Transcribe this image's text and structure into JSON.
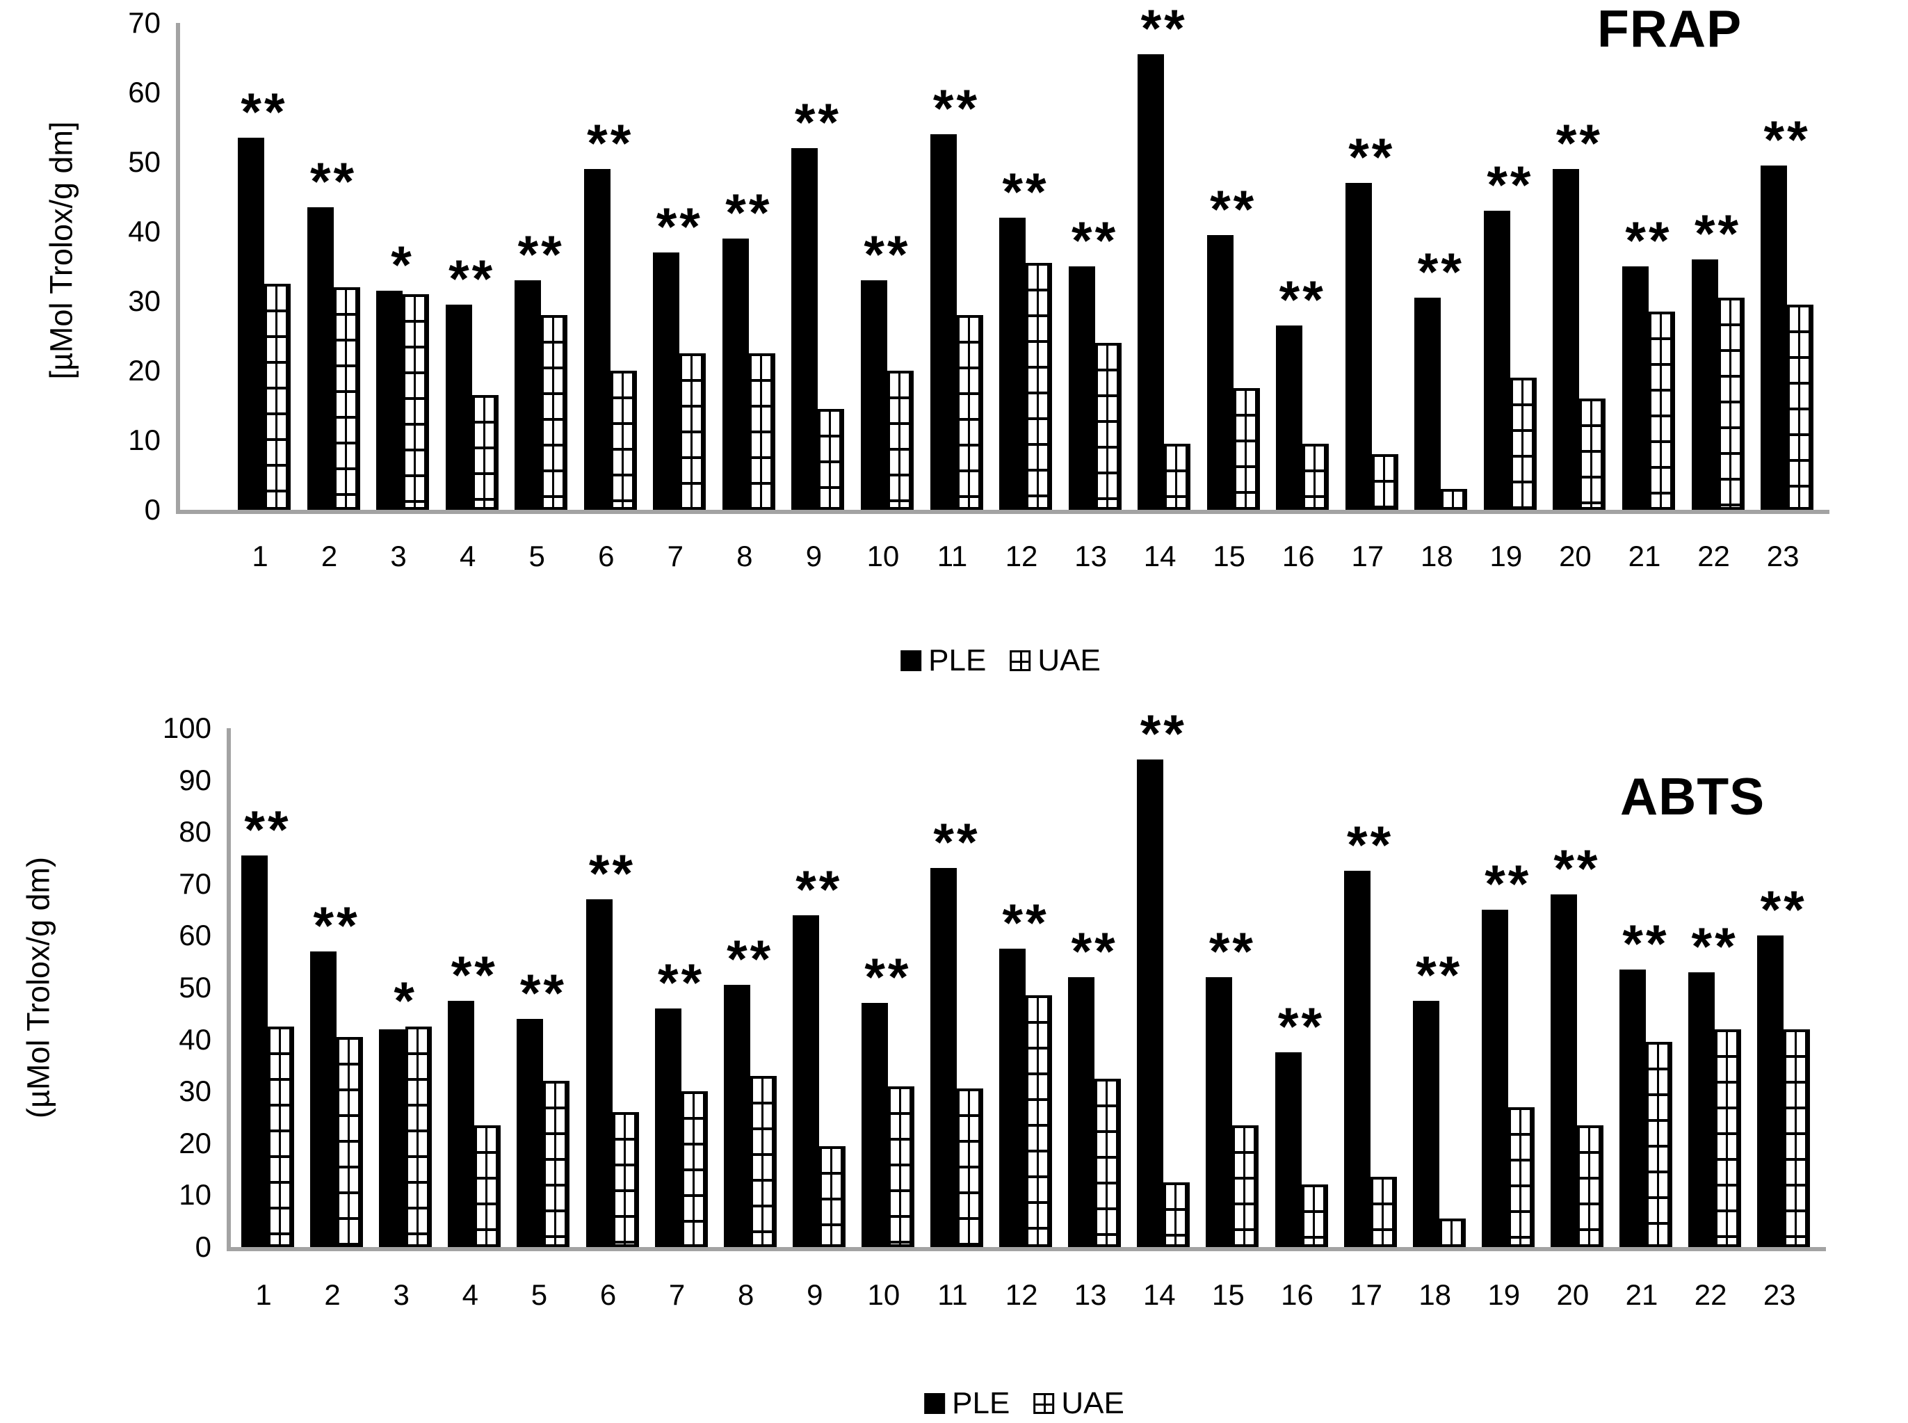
{
  "figure": {
    "panels": [
      "FRAP",
      "ABTS"
    ]
  },
  "chart_data": [
    {
      "type": "bar",
      "title": "FRAP",
      "xlabel": "",
      "ylabel": "[µMol Trolox/g dm]",
      "ylim": [
        0,
        70
      ],
      "yticks": [
        0,
        10,
        20,
        30,
        40,
        50,
        60,
        70
      ],
      "grid": false,
      "legend_position": "bottom-center",
      "categories": [
        "1",
        "2",
        "3",
        "4",
        "5",
        "6",
        "7",
        "8",
        "9",
        "10",
        "11",
        "12",
        "13",
        "14",
        "15",
        "16",
        "17",
        "18",
        "19",
        "20",
        "21",
        "22",
        "23"
      ],
      "series": [
        {
          "name": "PLE",
          "style": "solid-black",
          "values": [
            53.5,
            43.5,
            31.5,
            29.5,
            33,
            49,
            37,
            39,
            52,
            33,
            54,
            42,
            35,
            65.5,
            39.5,
            26.5,
            47,
            30.5,
            43,
            49,
            35,
            36,
            49.5
          ]
        },
        {
          "name": "UAE",
          "style": "hatched-grid",
          "values": [
            32.5,
            32,
            31,
            16.5,
            28,
            20,
            22.5,
            22.5,
            14.5,
            20,
            28,
            35.5,
            24,
            9.5,
            17.5,
            9.5,
            8,
            3,
            19,
            16,
            28.5,
            30.5,
            29.5
          ]
        }
      ],
      "significance": [
        "**",
        "**",
        "*",
        "**",
        "**",
        "**",
        "**",
        "**",
        "**",
        "**",
        "**",
        "**",
        "**",
        "**",
        "**",
        "**",
        "**",
        "**",
        "**",
        "**",
        "**",
        "**",
        "**"
      ]
    },
    {
      "type": "bar",
      "title": "ABTS",
      "xlabel": "",
      "ylabel": "(µMol Trolox/g dm)",
      "ylim": [
        0,
        100
      ],
      "yticks": [
        0,
        10,
        20,
        30,
        40,
        50,
        60,
        70,
        80,
        90,
        100
      ],
      "grid": false,
      "legend_position": "bottom-center",
      "categories": [
        "1",
        "2",
        "3",
        "4",
        "5",
        "6",
        "7",
        "8",
        "9",
        "10",
        "11",
        "12",
        "13",
        "14",
        "15",
        "16",
        "17",
        "18",
        "19",
        "20",
        "21",
        "22",
        "23"
      ],
      "series": [
        {
          "name": "PLE",
          "style": "solid-black",
          "values": [
            75.5,
            57,
            42,
            47.5,
            44,
            67,
            46,
            50.5,
            64,
            47,
            73,
            57.5,
            52,
            94,
            52,
            37.5,
            72.5,
            47.5,
            65,
            68,
            53.5,
            53,
            60
          ]
        },
        {
          "name": "UAE",
          "style": "hatched-grid",
          "values": [
            42.5,
            40.5,
            42.5,
            23.5,
            32,
            26,
            30,
            33,
            19.5,
            31,
            30.5,
            48.5,
            32.5,
            12.5,
            23.5,
            12,
            13.5,
            5.5,
            27,
            23.5,
            39.5,
            42,
            42
          ]
        }
      ],
      "significance": [
        "**",
        "**",
        "*",
        "**",
        "**",
        "**",
        "**",
        "**",
        "**",
        "**",
        "**",
        "**",
        "**",
        "**",
        "**",
        "**",
        "**",
        "**",
        "**",
        "**",
        "**",
        "**",
        "**"
      ]
    }
  ]
}
